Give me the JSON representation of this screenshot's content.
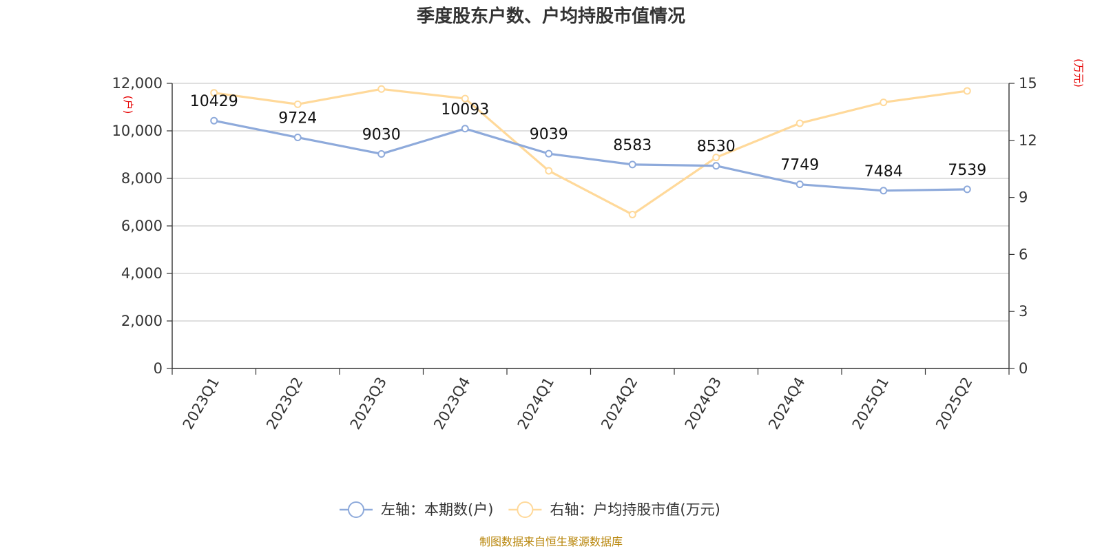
{
  "chart_data": {
    "type": "line",
    "title": "季度股东户数、户均持股市值情况",
    "categories": [
      "2023Q1",
      "2023Q2",
      "2023Q3",
      "2023Q4",
      "2024Q1",
      "2024Q2",
      "2024Q3",
      "2024Q4",
      "2025Q1",
      "2025Q2"
    ],
    "left_axis": {
      "unit": "(户)",
      "ylim": [
        0,
        12000
      ],
      "ticks": [
        0,
        2000,
        4000,
        6000,
        8000,
        10000,
        12000
      ],
      "tick_labels": [
        "0",
        "2,000",
        "4,000",
        "6,000",
        "8,000",
        "10,000",
        "12,000"
      ]
    },
    "right_axis": {
      "unit": "(万元)",
      "ylim": [
        0,
        15
      ],
      "ticks": [
        0,
        3,
        6,
        9,
        12,
        15
      ],
      "tick_labels": [
        "0",
        "3",
        "6",
        "9",
        "12",
        "15"
      ]
    },
    "series": [
      {
        "name": "左轴：本期数(户)",
        "axis": "left",
        "color": "#8eaadb",
        "values": [
          10429,
          9724,
          9030,
          10093,
          9039,
          8583,
          8530,
          7749,
          7484,
          7539
        ],
        "labels": [
          "10429",
          "9724",
          "9030",
          "10093",
          "9039",
          "8583",
          "8530",
          "7749",
          "7484",
          "7539"
        ]
      },
      {
        "name": "右轴：户均持股市值(万元)",
        "axis": "right",
        "color": "#ffd99a",
        "values": [
          14.5,
          13.9,
          14.7,
          14.2,
          10.4,
          8.1,
          11.1,
          12.9,
          14.0,
          14.6
        ]
      }
    ],
    "grid": true,
    "legend_position": "bottom"
  },
  "source": "制图数据来自恒生聚源数据库"
}
